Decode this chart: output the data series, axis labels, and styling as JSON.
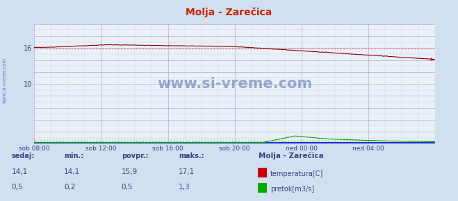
{
  "title": "Molja - Zarečica",
  "bg_color": "#d0e0f0",
  "plot_bg_color": "#e8f0f8",
  "grid_color_major": "#c0a8c8",
  "grid_color_minor": "#ddd0e8",
  "temp_color": "#cc0000",
  "flow_color": "#00aa00",
  "avg_temp_color": "#ff6666",
  "avg_flow_color": "#00bb00",
  "blue_line_color": "#0000cc",
  "ylim": [
    0,
    20
  ],
  "xlabel_ticks": [
    "sob 08:00",
    "sob 12:00",
    "sob 16:00",
    "sob 20:00",
    "ned 00:00",
    "ned 04:00"
  ],
  "n_points": 288,
  "temp_avg": 15.9,
  "flow_avg": 0.5,
  "watermark": "www.si-vreme.com",
  "legend_title": "Molja - Zarečica",
  "legend_items": [
    "temperatura[C]",
    "pretok[m3/s]"
  ],
  "table_headers": [
    "sedaj:",
    "min.:",
    "povpr.:",
    "maks.:"
  ],
  "table_temp": [
    "14,1",
    "14,1",
    "15,9",
    "17,1"
  ],
  "table_flow": [
    "0,5",
    "0,2",
    "0,5",
    "1,3"
  ]
}
